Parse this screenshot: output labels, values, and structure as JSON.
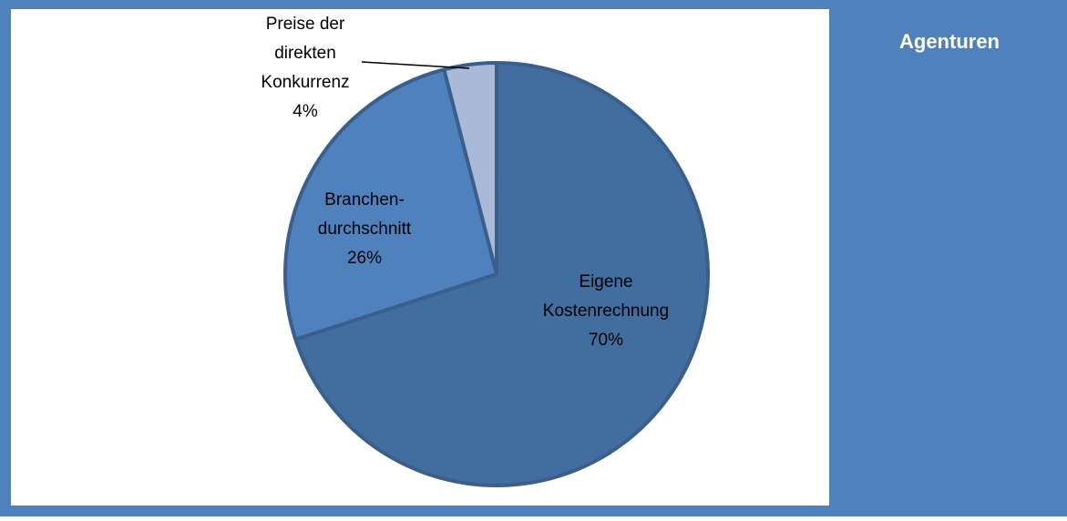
{
  "chart_data": {
    "type": "pie",
    "side_title": "Agenturen",
    "categories": [
      "Eigene\nKostenrechnung",
      "Branchen-\ndurchschnitt",
      "Preise der\ndirekten\nKonkurrenz"
    ],
    "values": [
      70,
      26,
      4
    ],
    "value_labels": [
      "70%",
      "26%",
      "4%"
    ],
    "colors": [
      "#426d9f",
      "#4f81bd",
      "#aab9d8"
    ],
    "border_color": "#3a5f8c"
  }
}
